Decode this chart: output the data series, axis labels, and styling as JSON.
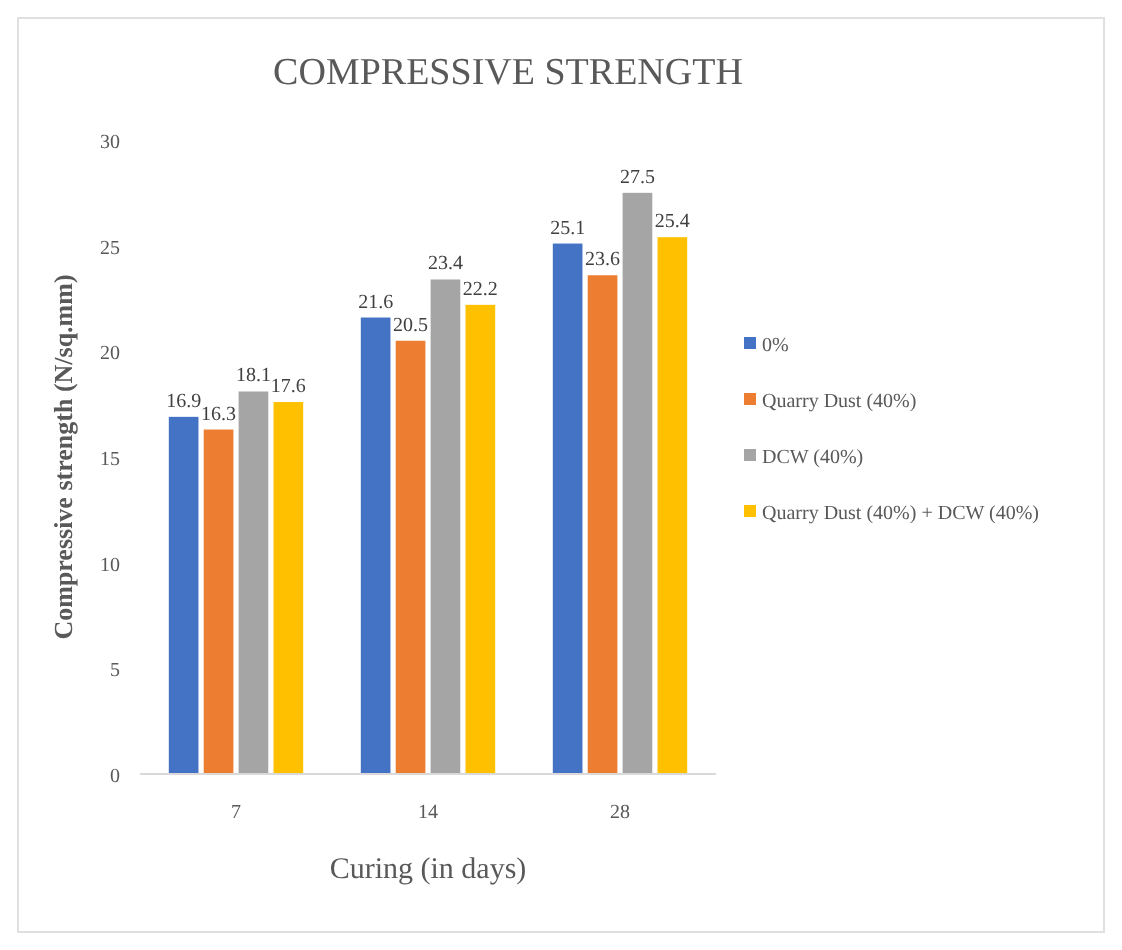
{
  "chart_data": {
    "type": "bar",
    "title": "COMPRESSIVE STRENGTH",
    "xlabel": "Curing (in days)",
    "ylabel": "Compressive strength (N/sq.mm)",
    "categories": [
      "7",
      "14",
      "28"
    ],
    "series": [
      {
        "name": "0%",
        "color": "#4472c4",
        "values": [
          16.9,
          21.6,
          25.1
        ]
      },
      {
        "name": "Quarry Dust (40%)",
        "color": "#ed7d31",
        "values": [
          16.3,
          20.5,
          23.6
        ]
      },
      {
        "name": "DCW (40%)",
        "color": "#a5a5a5",
        "values": [
          18.1,
          23.4,
          27.5
        ]
      },
      {
        "name": "Quarry Dust (40%) + DCW (40%)",
        "color": "#ffc000",
        "values": [
          17.6,
          22.2,
          25.4
        ]
      }
    ],
    "ylim": [
      0,
      30
    ],
    "yticks": [
      0,
      5,
      10,
      15,
      20,
      25,
      30
    ],
    "grid": false,
    "legend": "right",
    "data_labels": true
  }
}
